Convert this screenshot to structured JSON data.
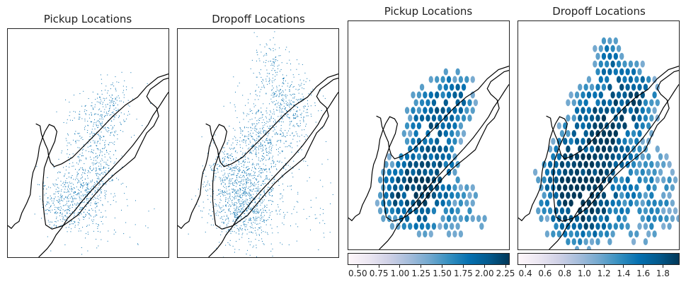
{
  "colors": {
    "point": "#0570b0",
    "coast": "#000000",
    "cmap": [
      "#fff7fb",
      "#ece7f2",
      "#d0d1e6",
      "#a6bddb",
      "#74a9cf",
      "#3690c0",
      "#0570b0",
      "#045a8d",
      "#023858"
    ]
  },
  "chart_data": [
    {
      "type": "scatter",
      "title": "Pickup Locations",
      "subject": "pickup",
      "grid": false
    },
    {
      "type": "scatter",
      "title": "Dropoff Locations",
      "subject": "dropoff",
      "grid": false
    },
    {
      "type": "heatmap",
      "title": "Pickup Locations",
      "subject": "pickup",
      "colorbar": {
        "range": [
          0.38,
          2.3
        ],
        "ticks": [
          "0.50",
          "0.75",
          "1.00",
          "1.25",
          "1.50",
          "1.75",
          "2.00",
          "2.25"
        ]
      }
    },
    {
      "type": "heatmap",
      "title": "Dropoff Locations",
      "subject": "dropoff",
      "colorbar": {
        "range": [
          0.32,
          1.97
        ],
        "ticks": [
          "0.4",
          "0.6",
          "0.8",
          "1.0",
          "1.2",
          "1.4",
          "1.6",
          "1.8"
        ]
      }
    }
  ]
}
